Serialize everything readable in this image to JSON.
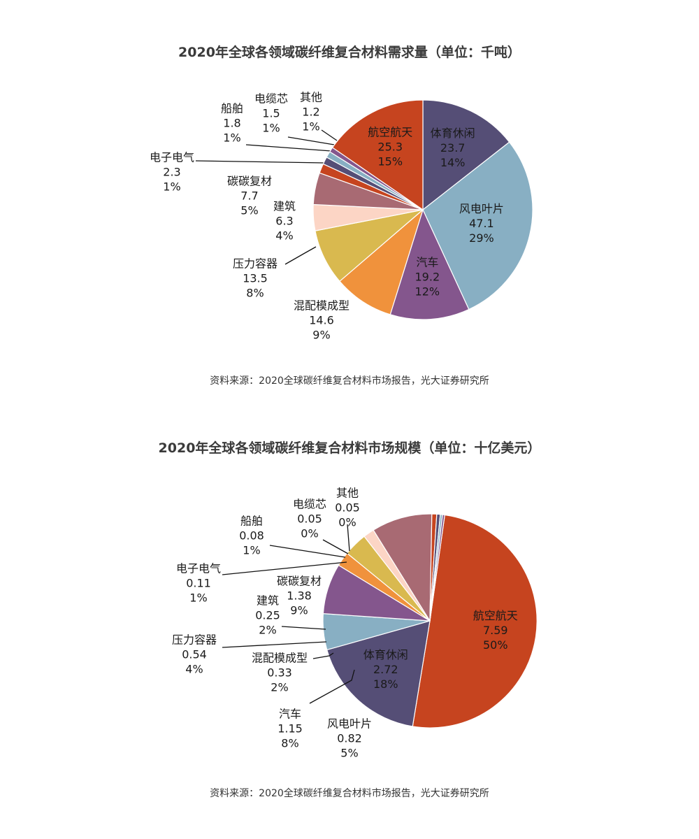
{
  "chart_data": [
    {
      "type": "pie",
      "title": "2020年全球各领域碳纤维复合材料需求量（单位：千吨）",
      "source": "资料来源：2020全球碳纤维复合材料市场报告，光大证券研究所",
      "start_angle_deg": 0,
      "slices": [
        {
          "label": "体育休闲",
          "value": 23.7,
          "display_value": "23.7",
          "percent": "14%",
          "color": "#554e76"
        },
        {
          "label": "风电叶片",
          "value": 47.1,
          "display_value": "47.1",
          "percent": "29%",
          "color": "#88afc3"
        },
        {
          "label": "汽车",
          "value": 19.2,
          "display_value": "19.2",
          "percent": "12%",
          "color": "#84568d"
        },
        {
          "label": "混配模成型",
          "value": 14.6,
          "display_value": "14.6",
          "percent": "9%",
          "color": "#f0923c"
        },
        {
          "label": "压力容器",
          "value": 13.5,
          "display_value": "13.5",
          "percent": "8%",
          "color": "#d9b94f"
        },
        {
          "label": "建筑",
          "value": 6.3,
          "display_value": "6.3",
          "percent": "4%",
          "color": "#fcd5c5"
        },
        {
          "label": "碳碳复材",
          "value": 7.7,
          "display_value": "7.7",
          "percent": "5%",
          "color": "#a86a73"
        },
        {
          "label": "电子电气",
          "value": 2.3,
          "display_value": "2.3",
          "percent": "1%",
          "color": "#c6441f"
        },
        {
          "label": "船舶",
          "value": 1.8,
          "display_value": "1.8",
          "percent": "1%",
          "color": "#554e76"
        },
        {
          "label": "电缆芯",
          "value": 1.5,
          "display_value": "1.5",
          "percent": "1%",
          "color": "#88afc3"
        },
        {
          "label": "其他",
          "value": 1.2,
          "display_value": "1.2",
          "percent": "1%",
          "color": "#84568d"
        },
        {
          "label": "航空航天",
          "value": 25.3,
          "display_value": "25.3",
          "percent": "15%",
          "color": "#c6441f"
        }
      ]
    },
    {
      "type": "pie",
      "title": "2020年全球各领域碳纤维复合材料市场规模（单位：十亿美元）",
      "source": "资料来源：2020全球碳纤维复合材料市场报告，光大证券研究所",
      "start_angle_deg": 8,
      "slices": [
        {
          "label": "航空航天",
          "value": 7.59,
          "display_value": "7.59",
          "percent": "50%",
          "color": "#c6441f"
        },
        {
          "label": "体育休闲",
          "value": 2.72,
          "display_value": "2.72",
          "percent": "18%",
          "color": "#554e76"
        },
        {
          "label": "风电叶片",
          "value": 0.82,
          "display_value": "0.82",
          "percent": "5%",
          "color": "#88afc3"
        },
        {
          "label": "汽车",
          "value": 1.15,
          "display_value": "1.15",
          "percent": "8%",
          "color": "#84568d"
        },
        {
          "label": "混配模成型",
          "value": 0.33,
          "display_value": "0.33",
          "percent": "2%",
          "color": "#f0923c"
        },
        {
          "label": "压力容器",
          "value": 0.54,
          "display_value": "0.54",
          "percent": "4%",
          "color": "#d9b94f"
        },
        {
          "label": "建筑",
          "value": 0.25,
          "display_value": "0.25",
          "percent": "2%",
          "color": "#fcd5c5"
        },
        {
          "label": "碳碳复材",
          "value": 1.38,
          "display_value": "1.38",
          "percent": "9%",
          "color": "#a86a73"
        },
        {
          "label": "电子电气",
          "value": 0.11,
          "display_value": "0.11",
          "percent": "1%",
          "color": "#c6441f"
        },
        {
          "label": "船舶",
          "value": 0.08,
          "display_value": "0.08",
          "percent": "1%",
          "color": "#554e76"
        },
        {
          "label": "电缆芯",
          "value": 0.05,
          "display_value": "0.05",
          "percent": "0%",
          "color": "#88afc3"
        },
        {
          "label": "其他",
          "value": 0.05,
          "display_value": "0.05",
          "percent": "0%",
          "color": "#84568d"
        }
      ]
    }
  ]
}
